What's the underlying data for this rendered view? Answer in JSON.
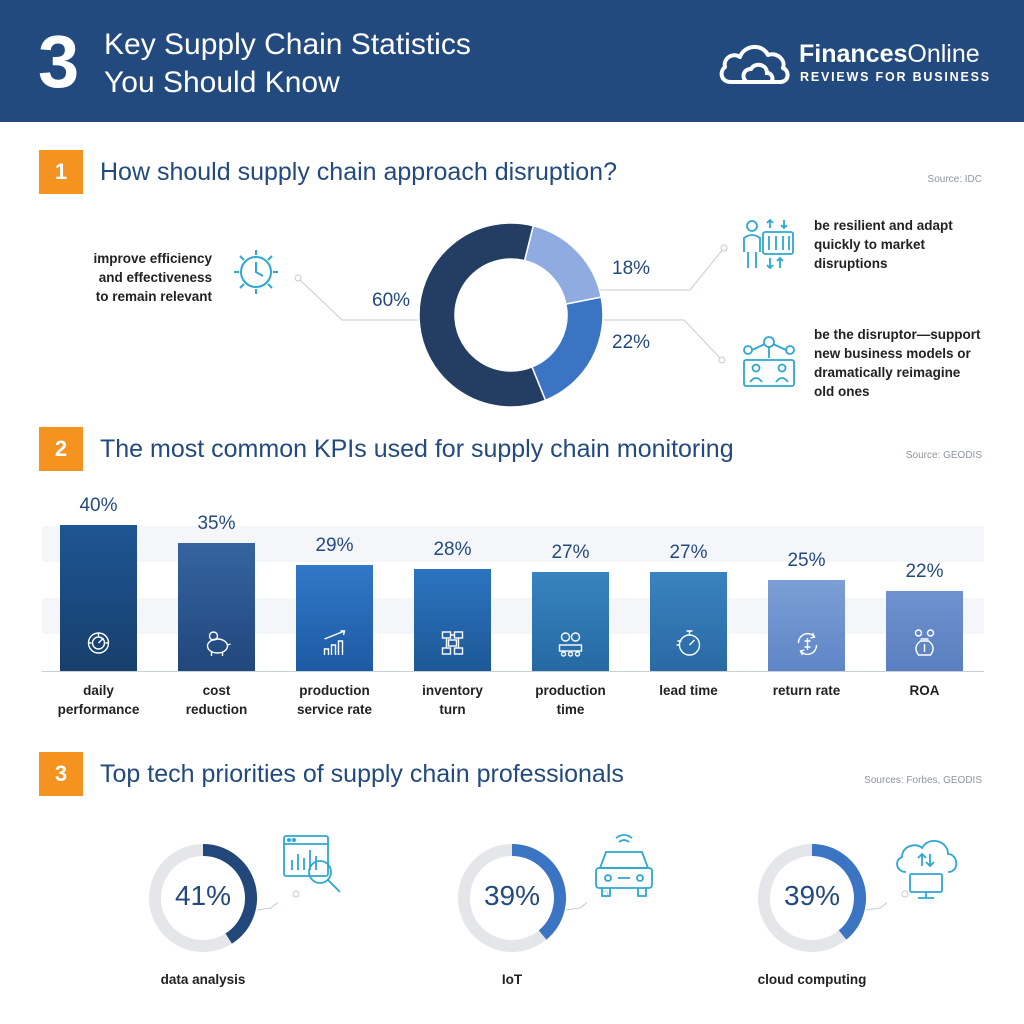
{
  "header": {
    "number": "3",
    "title_line1": "Key Supply Chain Statistics",
    "title_line2": "You Should Know",
    "brand_bold": "Finances",
    "brand_rest": "Online",
    "tagline": "REVIEWS FOR BUSINESS"
  },
  "colors": {
    "header_bg": "#234a7f",
    "accent_orange": "#f4931f",
    "dark_navy": "#233d63",
    "mid_blue": "#3a74c2",
    "light_blue": "#8fabe0"
  },
  "section1": {
    "number": "1",
    "title": "How should supply chain approach disruption?",
    "source": "Source: IDC",
    "left_label_line1": "improve efficiency",
    "left_label_line2": "and effectiveness",
    "left_label_line3": "to remain relevant",
    "right_top_line1": "be resilient and adapt",
    "right_top_line2": "quickly to market",
    "right_top_line3": "disruptions",
    "right_bottom_line1": "be the disruptor—support",
    "right_bottom_line2": "new business models or",
    "right_bottom_line3": "dramatically reimagine",
    "right_bottom_line4": "old ones",
    "pct_60": "60%",
    "pct_18": "18%",
    "pct_22": "22%"
  },
  "section2": {
    "number": "2",
    "title": "The most common KPIs used for supply chain monitoring",
    "source": "Source: GEODIS"
  },
  "section3": {
    "number": "3",
    "title": "Top tech priorities of supply chain professionals",
    "source": "Sources: Forbes, GEODIS"
  },
  "chart_data": [
    {
      "type": "pie",
      "title": "How should supply chain approach disruption?",
      "categories": [
        "improve efficiency and effectiveness to remain relevant",
        "be resilient and adapt quickly to market disruptions",
        "be the disruptor—support new business models or dramatically reimagine old ones"
      ],
      "values": [
        60,
        18,
        22
      ],
      "colors": [
        "#233d63",
        "#8fabe0",
        "#3a74c2"
      ],
      "donut": true
    },
    {
      "type": "bar",
      "title": "The most common KPIs used for supply chain monitoring",
      "categories": [
        "daily performance",
        "cost reduction",
        "production service rate",
        "inventory turn",
        "production time",
        "lead time",
        "return rate",
        "ROA"
      ],
      "label_lines": [
        [
          "daily",
          "performance"
        ],
        [
          "cost",
          "reduction"
        ],
        [
          "production",
          "service rate"
        ],
        [
          "inventory",
          "turn"
        ],
        [
          "production",
          "time"
        ],
        [
          "lead time"
        ],
        [
          "return rate"
        ],
        [
          "ROA"
        ]
      ],
      "values": [
        40,
        35,
        29,
        28,
        27,
        27,
        25,
        22
      ],
      "value_labels": [
        "40%",
        "35%",
        "29%",
        "28%",
        "27%",
        "27%",
        "25%",
        "22%"
      ],
      "icons": [
        "gauge-icon",
        "piggy-bank-icon",
        "growth-chart-icon",
        "flow-diagram-icon",
        "production-line-icon",
        "stopwatch-icon",
        "return-cycle-icon",
        "money-bag-icon"
      ],
      "colors": [
        [
          "#1e5593",
          "#173f6c"
        ],
        [
          "#3664a0",
          "#21477c"
        ],
        [
          "#3278c8",
          "#1c5aa3"
        ],
        [
          "#2c74c0",
          "#1d5896"
        ],
        [
          "#3784c0",
          "#2669a3"
        ],
        [
          "#3b82c0",
          "#296aa4"
        ],
        [
          "#7d9fd6",
          "#5e85c6"
        ],
        [
          "#6f92cf",
          "#5a7fc0"
        ]
      ],
      "ylim": [
        0,
        40
      ],
      "grid": false
    },
    {
      "type": "pie",
      "title": "Top tech priorities of supply chain professionals",
      "categories": [
        "data analysis",
        "IoT",
        "cloud computing"
      ],
      "values": [
        41,
        39,
        39
      ],
      "value_labels": [
        "41%",
        "39%",
        "39%"
      ],
      "colors": [
        "#22477a",
        "#3a74c2",
        "#3a74c2"
      ],
      "style": "gauge-ring"
    }
  ]
}
